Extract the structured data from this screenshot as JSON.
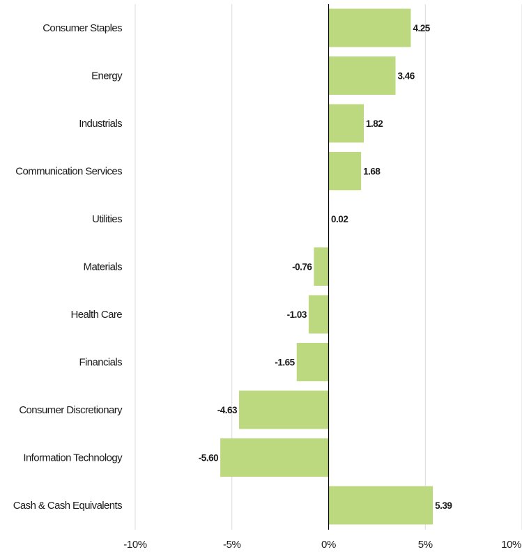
{
  "chart_data": {
    "type": "bar",
    "orientation": "horizontal",
    "categories": [
      "Consumer Staples",
      "Energy",
      "Industrials",
      "Communication Services",
      "Utilities",
      "Materials",
      "Health Care",
      "Financials",
      "Consumer Discretionary",
      "Information Technology",
      "Cash & Cash Equivalents"
    ],
    "values": [
      4.25,
      3.46,
      1.82,
      1.68,
      0.02,
      -0.76,
      -1.03,
      -1.65,
      -4.63,
      -5.6,
      5.39
    ],
    "value_labels": [
      "4.25",
      "3.46",
      "1.82",
      "1.68",
      "0.02",
      "-0.76",
      "-1.03",
      "-1.65",
      "-4.63",
      "-5.60",
      "5.39"
    ],
    "xlim": [
      -10,
      10
    ],
    "x_ticks": [
      -10,
      -5,
      0,
      5,
      10
    ],
    "x_tick_labels": [
      "-10%",
      "-5%",
      "0%",
      "5%",
      "10%"
    ],
    "grid": "vertical",
    "legend": "none",
    "bar_color": "#bdd97f",
    "grid_color": "#d9d9d9",
    "zero_line_color": "#000000"
  }
}
